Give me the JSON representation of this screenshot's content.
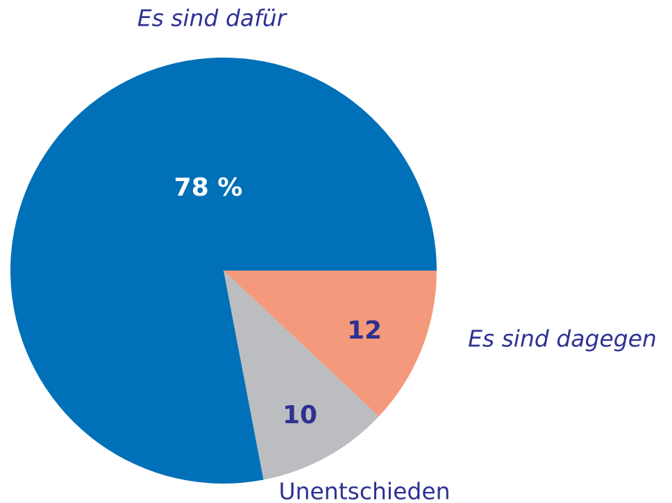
{
  "chart_data": {
    "type": "pie",
    "categories": [
      "Es sind dagegen",
      "Unentschieden",
      "Es sind dafür"
    ],
    "values": [
      12,
      10,
      78
    ],
    "value_labels": [
      "12",
      "10",
      "78 %"
    ],
    "colors": [
      "#f4997b",
      "#bcbdc0",
      "#0070b8"
    ]
  }
}
